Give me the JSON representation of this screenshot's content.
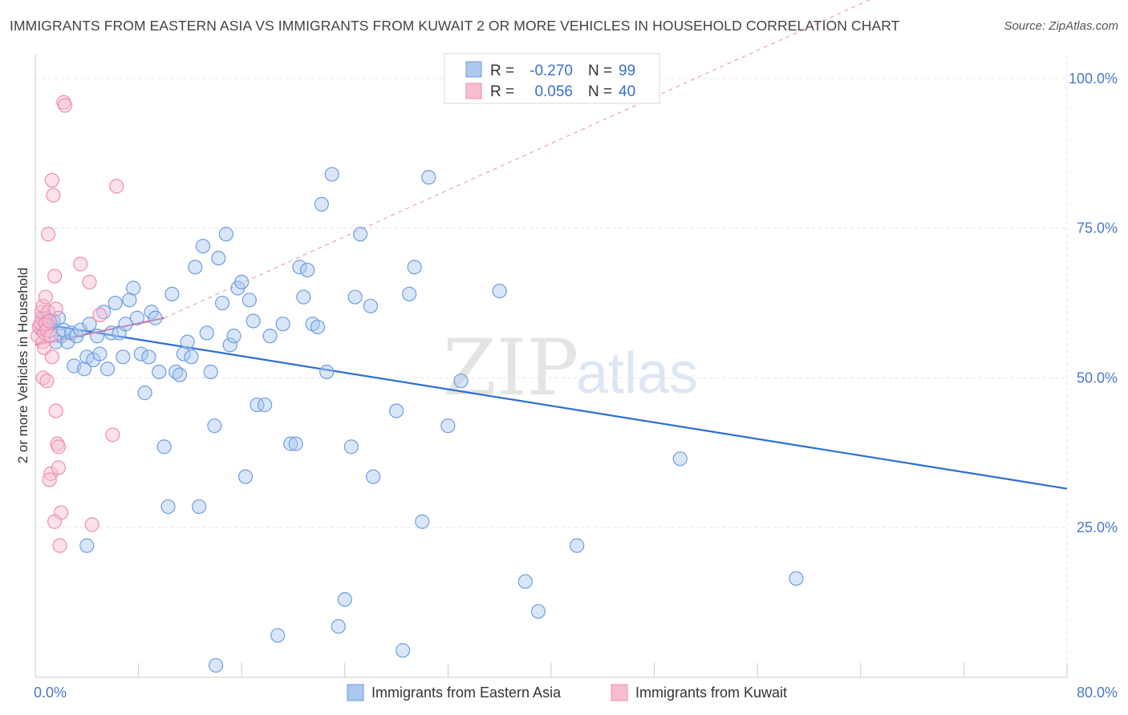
{
  "title": "IMMIGRANTS FROM EASTERN ASIA VS IMMIGRANTS FROM KUWAIT 2 OR MORE VEHICLES IN HOUSEHOLD CORRELATION CHART",
  "source": "Source: ZipAtlas.com",
  "watermark": {
    "zip": "ZIP",
    "atlas": "atlas"
  },
  "legend": {
    "r_label": "R =",
    "n_label": "N =",
    "rows": [
      {
        "r": "-0.270",
        "n": "99"
      },
      {
        "r": "0.056",
        "n": "40"
      }
    ]
  },
  "colors": {
    "blue_fill": "#aac8f0",
    "blue_stroke": "#6f9ee0",
    "blue_line": "#2b6fd6",
    "pink_fill": "#f6bcd0",
    "pink_stroke": "#ee8fb0",
    "pink_line": "#e0608c",
    "tick_text": "#4a78c8",
    "grid": "#e6e6e6"
  },
  "chart_data": {
    "type": "scatter",
    "title": "IMMIGRANTS FROM EASTERN ASIA VS IMMIGRANTS FROM KUWAIT 2 OR MORE VEHICLES IN HOUSEHOLD CORRELATION CHART",
    "xlabel": "",
    "ylabel": "2 or more Vehicles in Household",
    "xlim": [
      0,
      80
    ],
    "ylim": [
      0,
      104
    ],
    "x_ticks": [
      "0.0%",
      "80.0%"
    ],
    "y_ticks": [
      {
        "value": 25,
        "label": "25.0%"
      },
      {
        "value": 50,
        "label": "50.0%"
      },
      {
        "value": 75,
        "label": "75.0%"
      },
      {
        "value": 100,
        "label": "100.0%"
      }
    ],
    "grid": true,
    "legend_position": "top-center",
    "series": [
      {
        "name": "Immigrants from Eastern Asia",
        "r": -0.27,
        "n": 99,
        "trend": {
          "x": [
            0.5,
            80
          ],
          "y": [
            59.0,
            31.5
          ]
        },
        "points": [
          [
            0.5,
            58
          ],
          [
            0.7,
            60
          ],
          [
            0.9,
            59.5
          ],
          [
            1.0,
            58.5
          ],
          [
            1.2,
            59
          ],
          [
            1.4,
            59.5
          ],
          [
            1.6,
            56
          ],
          [
            1.8,
            60
          ],
          [
            2.0,
            57
          ],
          [
            2.2,
            58
          ],
          [
            2.5,
            56
          ],
          [
            2.8,
            57.5
          ],
          [
            3.0,
            52
          ],
          [
            3.2,
            57
          ],
          [
            3.5,
            58
          ],
          [
            3.8,
            51.5
          ],
          [
            4.0,
            53.5
          ],
          [
            4.2,
            59
          ],
          [
            4.5,
            53
          ],
          [
            4.8,
            57
          ],
          [
            5.0,
            54
          ],
          [
            5.3,
            61
          ],
          [
            5.6,
            51.5
          ],
          [
            5.9,
            57.5
          ],
          [
            6.2,
            62.5
          ],
          [
            6.5,
            57.5
          ],
          [
            6.8,
            53.5
          ],
          [
            7.0,
            59
          ],
          [
            7.3,
            63
          ],
          [
            7.6,
            65
          ],
          [
            7.9,
            60
          ],
          [
            8.2,
            54
          ],
          [
            8.5,
            47.5
          ],
          [
            8.8,
            53.5
          ],
          [
            9.0,
            61
          ],
          [
            9.3,
            60
          ],
          [
            9.6,
            51
          ],
          [
            10.0,
            38.5
          ],
          [
            10.3,
            28.5
          ],
          [
            10.6,
            64
          ],
          [
            10.9,
            51
          ],
          [
            11.2,
            50.5
          ],
          [
            11.5,
            54
          ],
          [
            11.8,
            56
          ],
          [
            12.1,
            53.5
          ],
          [
            12.4,
            68.5
          ],
          [
            12.7,
            28.5
          ],
          [
            13.0,
            72
          ],
          [
            13.3,
            57.5
          ],
          [
            13.6,
            51
          ],
          [
            13.9,
            42
          ],
          [
            14.2,
            70
          ],
          [
            14.5,
            62.5
          ],
          [
            14.8,
            74
          ],
          [
            15.1,
            55.5
          ],
          [
            15.4,
            57
          ],
          [
            15.7,
            65
          ],
          [
            16.0,
            66
          ],
          [
            16.3,
            33.5
          ],
          [
            16.6,
            63
          ],
          [
            16.9,
            59.5
          ],
          [
            17.2,
            45.5
          ],
          [
            17.8,
            45.5
          ],
          [
            18.2,
            57
          ],
          [
            18.8,
            7
          ],
          [
            19.2,
            59
          ],
          [
            19.8,
            39
          ],
          [
            20.2,
            39
          ],
          [
            20.5,
            68.5
          ],
          [
            20.8,
            63.5
          ],
          [
            21.1,
            68
          ],
          [
            21.5,
            59
          ],
          [
            21.9,
            58.5
          ],
          [
            22.2,
            79
          ],
          [
            22.6,
            51
          ],
          [
            23.0,
            84
          ],
          [
            23.5,
            8.5
          ],
          [
            24.0,
            13
          ],
          [
            24.5,
            38.5
          ],
          [
            24.8,
            63.5
          ],
          [
            25.2,
            74
          ],
          [
            26.0,
            62
          ],
          [
            26.2,
            33.5
          ],
          [
            28.0,
            44.5
          ],
          [
            28.5,
            4.5
          ],
          [
            29.0,
            64
          ],
          [
            29.4,
            68.5
          ],
          [
            30.0,
            26
          ],
          [
            30.5,
            83.5
          ],
          [
            32.0,
            42
          ],
          [
            33.0,
            49.5
          ],
          [
            36.0,
            64.5
          ],
          [
            38.0,
            16
          ],
          [
            39.0,
            11
          ],
          [
            42.0,
            22
          ],
          [
            50.0,
            36.5
          ],
          [
            59.0,
            16.5
          ],
          [
            4.0,
            22
          ],
          [
            14.0,
            2
          ]
        ]
      },
      {
        "name": "Immigrants from Kuwait",
        "r": 0.056,
        "n": 40,
        "trend": {
          "x": [
            0,
            10
          ],
          "y": [
            55.5,
            60.0
          ]
        },
        "points": [
          [
            0.2,
            57
          ],
          [
            0.3,
            58.5
          ],
          [
            0.4,
            59
          ],
          [
            0.5,
            60
          ],
          [
            0.5,
            61
          ],
          [
            0.6,
            62
          ],
          [
            0.6,
            56
          ],
          [
            0.7,
            57.5
          ],
          [
            0.7,
            55
          ],
          [
            0.8,
            63.5
          ],
          [
            0.8,
            59
          ],
          [
            0.9,
            58
          ],
          [
            1.0,
            74
          ],
          [
            1.0,
            61
          ],
          [
            1.1,
            59.5
          ],
          [
            1.2,
            57
          ],
          [
            1.3,
            53.5
          ],
          [
            1.3,
            83
          ],
          [
            1.4,
            80.5
          ],
          [
            1.5,
            67
          ],
          [
            1.6,
            44.5
          ],
          [
            1.7,
            39
          ],
          [
            1.8,
            38.5
          ],
          [
            1.9,
            22
          ],
          [
            2.0,
            27.5
          ],
          [
            2.2,
            96
          ],
          [
            2.3,
            95.5
          ],
          [
            3.5,
            69
          ],
          [
            4.2,
            66
          ],
          [
            5.0,
            60.5
          ],
          [
            6.3,
            82
          ],
          [
            6.0,
            40.5
          ],
          [
            1.6,
            61.5
          ],
          [
            0.6,
            50
          ],
          [
            0.9,
            49.5
          ],
          [
            1.2,
            34
          ],
          [
            1.1,
            33
          ],
          [
            1.8,
            35
          ],
          [
            1.5,
            26
          ],
          [
            4.4,
            25.5
          ]
        ]
      }
    ]
  },
  "bottom_legend": [
    "Immigrants from Eastern Asia",
    "Immigrants from Kuwait"
  ]
}
